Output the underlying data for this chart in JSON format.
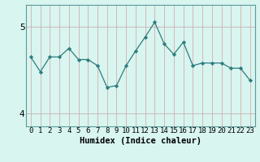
{
  "x": [
    0,
    1,
    2,
    3,
    4,
    5,
    6,
    7,
    8,
    9,
    10,
    11,
    12,
    13,
    14,
    15,
    16,
    17,
    18,
    19,
    20,
    21,
    22,
    23
  ],
  "y": [
    4.65,
    4.48,
    4.65,
    4.65,
    4.75,
    4.62,
    4.62,
    4.55,
    4.3,
    4.32,
    4.55,
    4.72,
    4.88,
    5.05,
    4.8,
    4.68,
    4.82,
    4.55,
    4.58,
    4.58,
    4.58,
    4.52,
    4.52,
    4.38
  ],
  "line_color": "#2e7d7d",
  "marker": "D",
  "marker_size": 2.2,
  "bg_color": "#d8f5f0",
  "vgrid_color": "#d4a0a0",
  "hgrid_color": "#c8b0b0",
  "xlabel": "Humidex (Indice chaleur)",
  "xlabel_fontsize": 7.5,
  "ylim": [
    3.85,
    5.25
  ],
  "yticks": [
    4,
    5
  ],
  "xticks": [
    0,
    1,
    2,
    3,
    4,
    5,
    6,
    7,
    8,
    9,
    10,
    11,
    12,
    13,
    14,
    15,
    16,
    17,
    18,
    19,
    20,
    21,
    22,
    23
  ],
  "tick_fontsize": 6.5,
  "ylabel_fontsize": 8,
  "spine_color": "#5a9a9a",
  "linewidth": 0.9
}
